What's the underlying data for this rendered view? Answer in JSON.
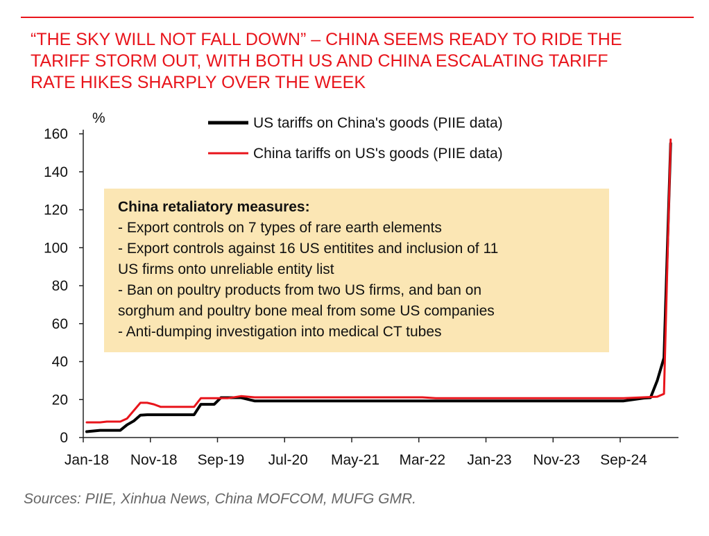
{
  "headline": {
    "line1": "“THE SKY WILL NOT FALL DOWN” – CHINA SEEMS READY TO RIDE THE",
    "line2": "TARIFF STORM OUT, WITH BOTH US AND CHINA ESCALATING TARIFF",
    "line3": "RATE HIKES SHARPLY OVER THE WEEK"
  },
  "chart_data": {
    "type": "line",
    "ylabel": "%",
    "ylim": [
      0,
      160
    ],
    "yticks": [
      0,
      20,
      40,
      60,
      80,
      100,
      120,
      140,
      160
    ],
    "xtick_labels": [
      "Jan-18",
      "Nov-18",
      "Sep-19",
      "Jul-20",
      "May-21",
      "Mar-22",
      "Jan-23",
      "Nov-23",
      "Sep-24"
    ],
    "xlim": [
      "2018-01",
      "2025-04"
    ],
    "grid": false,
    "legend_position": "top",
    "series": [
      {
        "name": "US tariffs on China's goods (PIIE data)",
        "color": "#000000",
        "points": [
          [
            "2018-01",
            3.1
          ],
          [
            "2018-03",
            3.8
          ],
          [
            "2018-06",
            3.8
          ],
          [
            "2018-07",
            6.7
          ],
          [
            "2018-08",
            8.7
          ],
          [
            "2018-09",
            11.8
          ],
          [
            "2018-10",
            12.0
          ],
          [
            "2019-05",
            12.0
          ],
          [
            "2019-06",
            17.5
          ],
          [
            "2019-08",
            17.5
          ],
          [
            "2019-09",
            21.0
          ],
          [
            "2019-10",
            21.0
          ],
          [
            "2019-12",
            21.0
          ],
          [
            "2020-02",
            19.3
          ],
          [
            "2022-01",
            19.3
          ],
          [
            "2024-09",
            19.3
          ],
          [
            "2024-12",
            20.8
          ],
          [
            "2025-01",
            21.0
          ],
          [
            "2025-02",
            30.0
          ],
          [
            "2025-03",
            42.0
          ],
          [
            "2025-04",
            155.0
          ]
        ]
      },
      {
        "name": "China tariffs on US's goods (PIIE data)",
        "color": "#e8141b",
        "points": [
          [
            "2018-01",
            8.0
          ],
          [
            "2018-03",
            8.0
          ],
          [
            "2018-04",
            8.4
          ],
          [
            "2018-06",
            8.4
          ],
          [
            "2018-07",
            10.0
          ],
          [
            "2018-09",
            18.3
          ],
          [
            "2018-10",
            18.3
          ],
          [
            "2018-11",
            17.5
          ],
          [
            "2018-12",
            16.2
          ],
          [
            "2019-05",
            16.2
          ],
          [
            "2019-06",
            20.7
          ],
          [
            "2019-10",
            20.7
          ],
          [
            "2019-12",
            21.8
          ],
          [
            "2020-02",
            21.2
          ],
          [
            "2022-03",
            21.2
          ],
          [
            "2022-05",
            20.7
          ],
          [
            "2024-09",
            20.7
          ],
          [
            "2025-02",
            21.5
          ],
          [
            "2025-03",
            23.0
          ],
          [
            "2025-04",
            157.0
          ]
        ]
      }
    ]
  },
  "callout": {
    "title": "China retaliatory measures:",
    "lines": [
      "- Export controls on 7 types of rare earth elements",
      "- Export controls against 16 US entitites and inclusion of 11",
      "US firms onto unreliable entity list",
      "- Ban on poultry products from two US firms, and ban on",
      "sorghum and poultry bone meal from some US companies",
      "- Anti-dumping investigation into medical CT tubes"
    ]
  },
  "source": "Sources:  PIIE, Xinhua News, China MOFCOM, MUFG GMR."
}
